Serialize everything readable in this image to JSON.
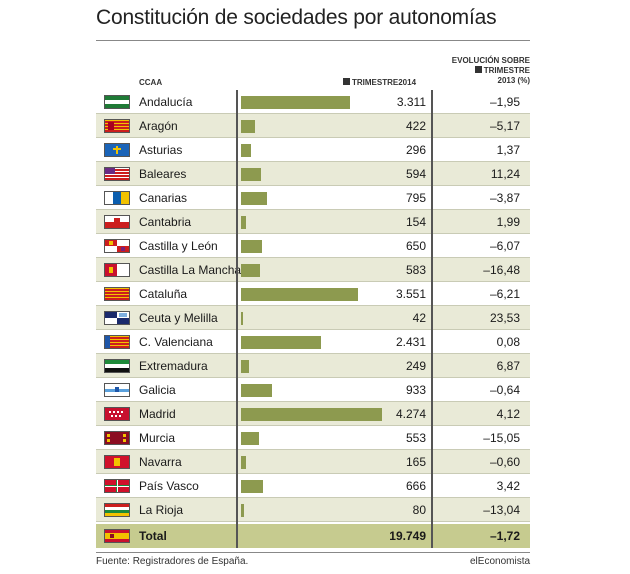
{
  "header": {
    "title": "Constitución de sociedades por autonomías",
    "col_region": "CCAA",
    "col_trimestre": "TRIMESTRE2014",
    "col_evolucion_line1": "EVOLUCIÓN SOBRE",
    "col_evolucion_line2": "TRIMESTRE",
    "col_evolucion_line3": "2013 (%)"
  },
  "chart_data": {
    "type": "bar",
    "orientation": "horizontal",
    "title": "Constitución de sociedades por autonomías",
    "categories": [
      "Andalucía",
      "Aragón",
      "Asturias",
      "Baleares",
      "Canarias",
      "Cantabria",
      "Castilla y León",
      "Castilla La Mancha",
      "Cataluña",
      "Ceuta y Melilla",
      "C. Valenciana",
      "Extremadura",
      "Galicia",
      "Madrid",
      "Murcia",
      "Navarra",
      "País Vasco",
      "La Rioja"
    ],
    "values": [
      3311,
      422,
      296,
      594,
      795,
      154,
      650,
      583,
      3551,
      42,
      2431,
      249,
      933,
      4274,
      553,
      165,
      666,
      80
    ],
    "value_labels": [
      "3.311",
      "422",
      "296",
      "594",
      "795",
      "154",
      "650",
      "583",
      "3.551",
      "42",
      "2.431",
      "249",
      "933",
      "4.274",
      "553",
      "165",
      "666",
      "80"
    ],
    "evolution_labels": [
      "–1,95",
      "–5,17",
      "1,37",
      "11,24",
      "–3,87",
      "1,99",
      "–6,07",
      "–16,48",
      "–6,21",
      "23,53",
      "0,08",
      "6,87",
      "–0,64",
      "4,12",
      "–15,05",
      "–0,60",
      "3,42",
      "–13,04"
    ],
    "xlim": [
      0,
      4274
    ],
    "total": {
      "label": "Total",
      "value": "19.749",
      "evolution": "–1,72"
    },
    "bar_color": "#8d9a4f"
  },
  "flags": [
    "andalucia",
    "aragon",
    "asturias",
    "baleares",
    "canarias",
    "cantabria",
    "castilla-leon",
    "castilla-la-mancha",
    "cataluna",
    "ceuta-melilla",
    "c-valenciana",
    "extremadura",
    "galicia",
    "madrid",
    "murcia",
    "navarra",
    "pais-vasco",
    "la-rioja",
    "espana"
  ],
  "footer": {
    "source": "Fuente: Registradores de España.",
    "brand": "elEconomista"
  }
}
